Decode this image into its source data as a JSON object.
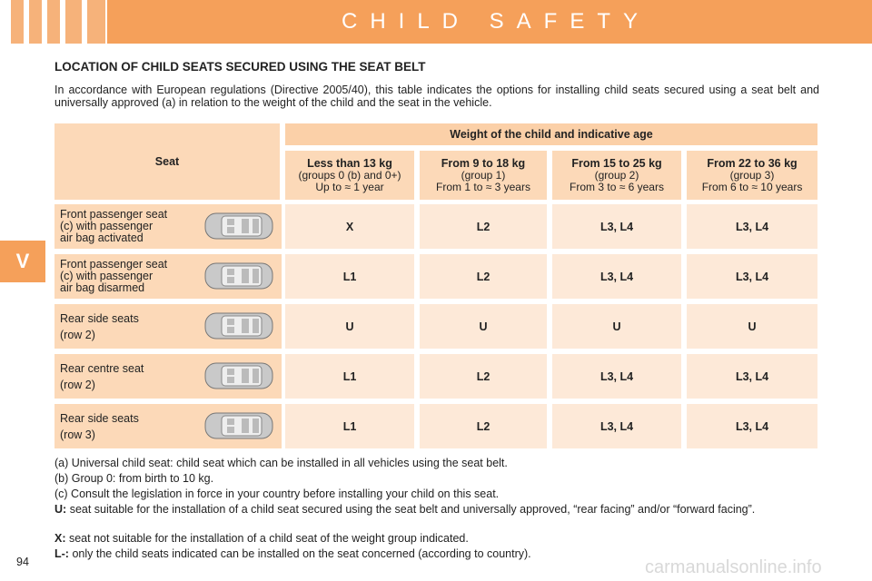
{
  "header": {
    "title": "CHILD SAFETY"
  },
  "section_tab": "V",
  "heading": "LOCATION OF CHILD SEATS SECURED USING THE SEAT BELT",
  "intro": "In accordance with European regulations (Directive 2005/40), this table indicates the options for installing child seats secured using a seat belt and universally approved (a) in relation to the weight of the child and the seat in the vehicle.",
  "table": {
    "seat_header": "Seat",
    "weight_header": "Weight of the child and indicative age",
    "columns": [
      {
        "weight": "Less than 13 kg",
        "group": "(groups 0 (b) and 0+)",
        "age": "Up to ≈ 1 year"
      },
      {
        "weight": "From 9 to 18 kg",
        "group": "(group 1)",
        "age": "From 1 to ≈ 3 years"
      },
      {
        "weight": "From 15 to 25 kg",
        "group": "(group 2)",
        "age": "From 3 to ≈ 6 years"
      },
      {
        "weight": "From 22 to 36 kg",
        "group": "(group 3)",
        "age": "From 6 to ≈ 10 years"
      }
    ],
    "rows": [
      {
        "seat": [
          "Front passenger seat",
          "(c) with passenger",
          "air bag activated"
        ],
        "values": [
          "X",
          "L2",
          "L3, L4",
          "L3, L4"
        ]
      },
      {
        "seat": [
          "Front passenger seat",
          "(c) with passenger",
          "air bag disarmed"
        ],
        "values": [
          "L1",
          "L2",
          "L3, L4",
          "L3, L4"
        ]
      },
      {
        "seat": [
          "Rear side seats",
          "(row 2)"
        ],
        "values": [
          "U",
          "U",
          "U",
          "U"
        ]
      },
      {
        "seat": [
          "Rear centre seat",
          "(row 2)"
        ],
        "values": [
          "L1",
          "L2",
          "L3, L4",
          "L3, L4"
        ]
      },
      {
        "seat": [
          "Rear side seats",
          "(row 3)"
        ],
        "values": [
          "L1",
          "L2",
          "L3, L4",
          "L3, L4"
        ]
      }
    ]
  },
  "notes": [
    {
      "text": "(a) Universal child seat: child seat which can be installed in all vehicles using the seat belt."
    },
    {
      "text": "(b) Group 0: from birth to 10 kg."
    },
    {
      "text": "(c) Consult the legislation in force in your country before installing your child on this seat."
    },
    {
      "label": "U:",
      "text": "seat suitable for the installation of a child seat secured using the seat belt and universally approved, “rear facing” and/or “forward facing”."
    },
    {
      "label": "X:",
      "text": "seat not suitable for the installation of a child seat of the weight group indicated."
    },
    {
      "label": "L-:",
      "text": "only the child seats indicated can be installed on the seat concerned (according to country)."
    }
  ],
  "page_number": "94",
  "watermark": "carmanualsonline.info"
}
